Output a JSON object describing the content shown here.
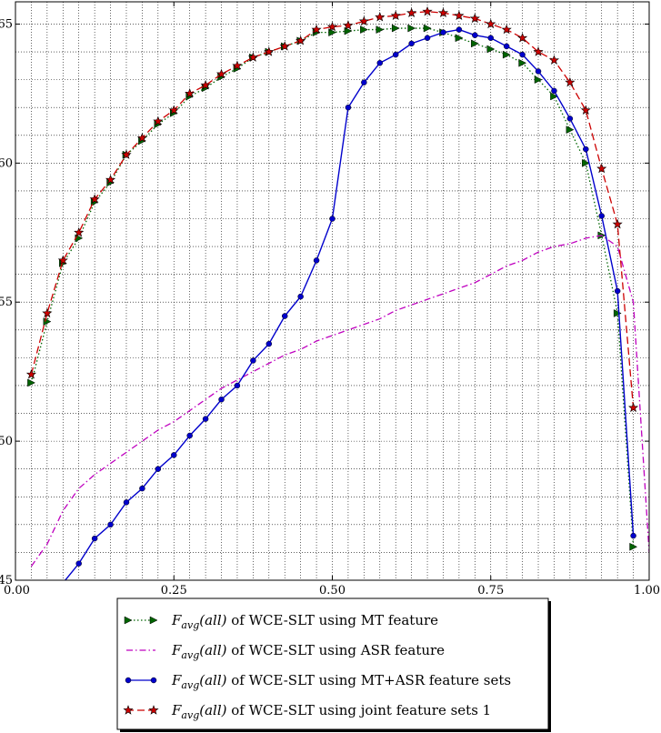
{
  "chart_data": {
    "type": "line",
    "title": "",
    "xlabel": "",
    "ylabel": "",
    "xlim": [
      0,
      1
    ],
    "ylim": [
      45,
      65.8
    ],
    "x_ticks": [
      0,
      0.25,
      0.5,
      0.75,
      1
    ],
    "x_tick_labels": [
      "0.00",
      "0.25",
      "0.50",
      "0.75",
      "1.00"
    ],
    "y_ticks": [
      45,
      50,
      55,
      60,
      65
    ],
    "y_tick_labels": [
      "45",
      "50",
      "55",
      "60",
      "65"
    ],
    "grid": true,
    "legend_position": "bottom",
    "series": [
      {
        "name_math": "F",
        "name_sub": "avg",
        "name_arg": "(all)",
        "name_rest": " of WCE-SLT using MT feature",
        "color": "#006400",
        "marker": "triangle-right",
        "style": "dotted",
        "x": [
          0.025,
          0.05,
          0.075,
          0.1,
          0.125,
          0.15,
          0.175,
          0.2,
          0.225,
          0.25,
          0.275,
          0.3,
          0.325,
          0.35,
          0.375,
          0.4,
          0.425,
          0.45,
          0.475,
          0.5,
          0.525,
          0.55,
          0.575,
          0.6,
          0.625,
          0.65,
          0.675,
          0.7,
          0.725,
          0.75,
          0.775,
          0.8,
          0.825,
          0.85,
          0.875,
          0.9,
          0.925,
          0.95,
          0.975
        ],
        "y": [
          52.1,
          54.3,
          56.4,
          57.3,
          58.6,
          59.3,
          60.3,
          60.8,
          61.4,
          61.8,
          62.4,
          62.7,
          63.1,
          63.4,
          63.8,
          64.0,
          64.2,
          64.4,
          64.7,
          64.7,
          64.75,
          64.8,
          64.8,
          64.85,
          64.85,
          64.85,
          64.7,
          64.5,
          64.3,
          64.1,
          63.9,
          63.6,
          63.0,
          62.4,
          61.2,
          60.0,
          57.4,
          54.6,
          46.2
        ]
      },
      {
        "name_math": "F",
        "name_sub": "avg",
        "name_arg": "(all)",
        "name_rest": " of WCE-SLT using ASR feature",
        "color": "#bf00bf",
        "marker": "none",
        "style": "dashdot",
        "x": [
          0.025,
          0.05,
          0.075,
          0.1,
          0.125,
          0.15,
          0.175,
          0.2,
          0.225,
          0.25,
          0.275,
          0.3,
          0.325,
          0.35,
          0.375,
          0.4,
          0.425,
          0.45,
          0.475,
          0.5,
          0.525,
          0.55,
          0.575,
          0.6,
          0.625,
          0.65,
          0.675,
          0.7,
          0.725,
          0.75,
          0.775,
          0.8,
          0.825,
          0.85,
          0.875,
          0.9,
          0.925,
          0.95,
          0.975,
          1.0
        ],
        "y": [
          45.5,
          46.3,
          47.5,
          48.3,
          48.8,
          49.2,
          49.6,
          50.0,
          50.4,
          50.7,
          51.1,
          51.5,
          51.9,
          52.2,
          52.5,
          52.8,
          53.1,
          53.3,
          53.6,
          53.8,
          54.0,
          54.2,
          54.4,
          54.7,
          54.9,
          55.1,
          55.3,
          55.5,
          55.7,
          56.0,
          56.3,
          56.5,
          56.8,
          57.0,
          57.1,
          57.3,
          57.4,
          57.0,
          55.0,
          46.0
        ]
      },
      {
        "name_math": "F",
        "name_sub": "avg",
        "name_arg": "(all)",
        "name_rest": " of WCE-SLT using MT+ASR feature sets",
        "color": "#0000cc",
        "marker": "circle",
        "style": "solid",
        "x": [
          0.075,
          0.1,
          0.125,
          0.15,
          0.175,
          0.2,
          0.225,
          0.25,
          0.275,
          0.3,
          0.325,
          0.35,
          0.375,
          0.4,
          0.425,
          0.45,
          0.475,
          0.5,
          0.525,
          0.55,
          0.575,
          0.6,
          0.625,
          0.65,
          0.675,
          0.7,
          0.725,
          0.75,
          0.775,
          0.8,
          0.825,
          0.85,
          0.875,
          0.9,
          0.925,
          0.95,
          0.975
        ],
        "y": [
          44.9,
          45.6,
          46.5,
          47.0,
          47.8,
          48.3,
          49.0,
          49.5,
          50.2,
          50.8,
          51.5,
          52.0,
          52.9,
          53.5,
          54.5,
          55.2,
          56.5,
          58.0,
          62.0,
          62.9,
          63.6,
          63.9,
          64.3,
          64.5,
          64.7,
          64.8,
          64.6,
          64.5,
          64.2,
          63.9,
          63.3,
          62.6,
          61.6,
          60.5,
          58.1,
          55.4,
          46.6
        ]
      },
      {
        "name_math": "F",
        "name_sub": "avg",
        "name_arg": "(all)",
        "name_rest": " of WCE-SLT using joint feature sets 1",
        "color": "#cc0000",
        "marker": "star",
        "style": "dashed",
        "x": [
          0.025,
          0.05,
          0.075,
          0.1,
          0.125,
          0.15,
          0.175,
          0.2,
          0.225,
          0.25,
          0.275,
          0.3,
          0.325,
          0.35,
          0.375,
          0.4,
          0.425,
          0.45,
          0.475,
          0.5,
          0.525,
          0.55,
          0.575,
          0.6,
          0.625,
          0.65,
          0.675,
          0.7,
          0.725,
          0.75,
          0.775,
          0.8,
          0.825,
          0.85,
          0.875,
          0.9,
          0.925,
          0.95,
          0.975
        ],
        "y": [
          52.4,
          54.6,
          56.5,
          57.5,
          58.7,
          59.4,
          60.3,
          60.9,
          61.5,
          61.9,
          62.5,
          62.8,
          63.2,
          63.5,
          63.8,
          64.0,
          64.2,
          64.4,
          64.8,
          64.9,
          64.95,
          65.1,
          65.25,
          65.3,
          65.4,
          65.45,
          65.4,
          65.3,
          65.2,
          65.0,
          64.8,
          64.5,
          64.0,
          63.7,
          62.9,
          61.9,
          59.8,
          57.8,
          51.2
        ]
      }
    ]
  }
}
